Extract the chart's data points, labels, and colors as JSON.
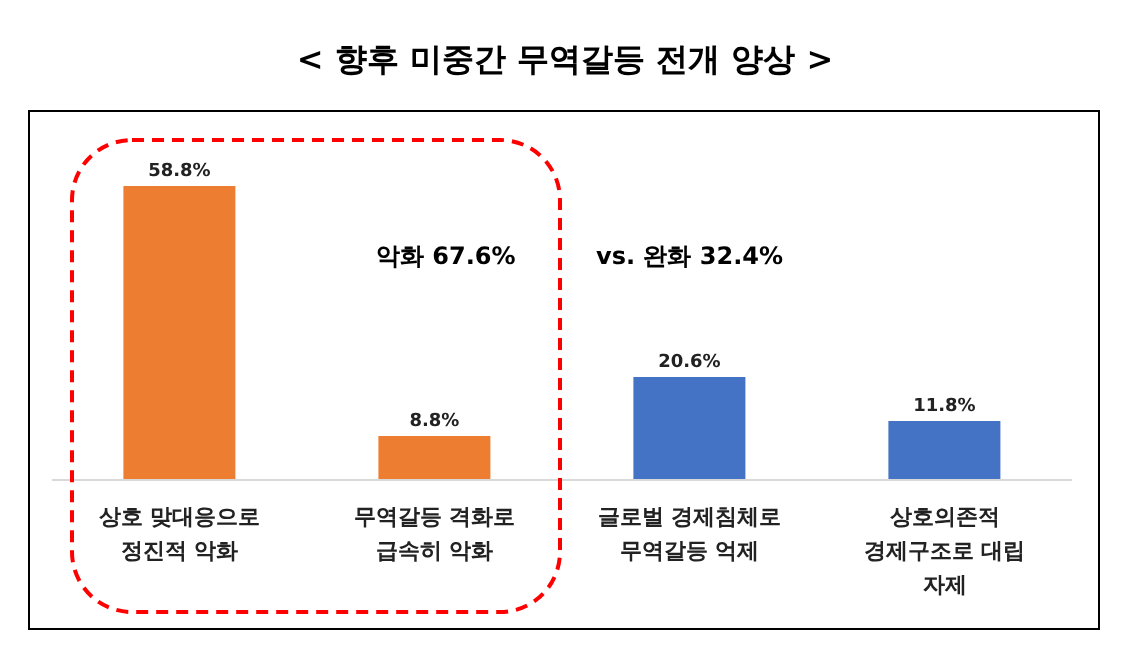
{
  "chart_data": {
    "type": "bar",
    "title": "< 향후 미중간 무역갈등 전개 양상 >",
    "categories": [
      "상호 맞대응으로\n정진적 악화",
      "무역갈등 격화로\n급속히 악화",
      "글로벌 경제침체로\n무역갈등 억제",
      "상호의존적\n경제구조로 대립\n자제"
    ],
    "values": [
      58.8,
      8.8,
      20.6,
      11.8
    ],
    "colors": [
      "#ed7d31",
      "#ed7d31",
      "#4472c4",
      "#4472c4"
    ],
    "value_labels": [
      "58.8%",
      "8.8%",
      "20.6%",
      "11.8%"
    ],
    "annotations": [
      "악화 67.6%",
      "vs. 완화 32.4%"
    ],
    "tick_labels": "x"
  }
}
